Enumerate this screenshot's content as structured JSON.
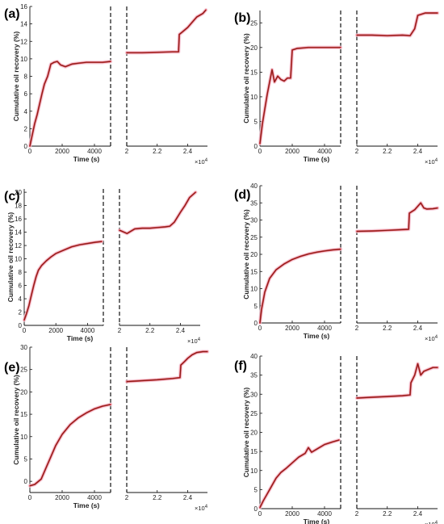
{
  "figure": {
    "xlabel": "Time (s)",
    "ylabel": "Cumulative oil recovery (%)",
    "x_multiplier": "×10^4",
    "line_color": "#8b1a1a",
    "shade_color": "#e03030",
    "halo_color": "#f3c4d4"
  },
  "chart_data": [
    {
      "panel": "(a)",
      "type": "line",
      "ylim": [
        0,
        16
      ],
      "yticks": [
        0,
        2,
        4,
        6,
        8,
        10,
        12,
        14,
        16
      ],
      "left": {
        "xlim": [
          0,
          5000
        ],
        "xticks": [
          0,
          2000,
          4000
        ]
      },
      "right": {
        "xlim": [
          20000,
          25300
        ],
        "xticks": [
          2,
          2.2,
          2.4
        ]
      },
      "series": [
        {
          "segment": "left",
          "x": [
            0,
            150,
            300,
            450,
            600,
            750,
            900,
            1100,
            1300,
            1500,
            1700,
            1900,
            2200,
            2600,
            3000,
            3500,
            4000,
            4500,
            5000
          ],
          "y": [
            0,
            1.3,
            2.6,
            3.6,
            4.8,
            6.0,
            7.1,
            8.0,
            9.4,
            9.6,
            9.7,
            9.3,
            9.1,
            9.4,
            9.5,
            9.6,
            9.6,
            9.6,
            9.7
          ]
        },
        {
          "segment": "right",
          "x": [
            20000,
            21000,
            22000,
            23000,
            23400,
            23450,
            23600,
            24000,
            24300,
            24600,
            25000,
            25200
          ],
          "y": [
            10.7,
            10.7,
            10.75,
            10.8,
            10.8,
            12.8,
            13.0,
            13.6,
            14.2,
            14.8,
            15.2,
            15.6
          ]
        }
      ]
    },
    {
      "panel": "(b)",
      "type": "line",
      "ylim": [
        0,
        27.5
      ],
      "yticks": [
        0,
        5,
        10,
        15,
        20,
        25
      ],
      "left": {
        "xlim": [
          0,
          5000
        ],
        "xticks": [
          0,
          2000,
          4000
        ]
      },
      "right": {
        "xlim": [
          20000,
          25300
        ],
        "xticks": [
          2,
          2.2,
          2.4
        ]
      },
      "series": [
        {
          "segment": "left",
          "x": [
            0,
            150,
            300,
            450,
            600,
            750,
            900,
            1100,
            1300,
            1500,
            1700,
            1900,
            2000,
            2300,
            3000,
            4000,
            5000
          ],
          "y": [
            0.5,
            4.5,
            7.5,
            10.5,
            13.0,
            15.5,
            13.0,
            14.2,
            13.5,
            13.2,
            13.8,
            13.8,
            19.5,
            19.8,
            20.0,
            20.0,
            20.0
          ]
        },
        {
          "segment": "right",
          "x": [
            20000,
            21000,
            22000,
            23000,
            23500,
            23800,
            24000,
            24500,
            25000,
            25300
          ],
          "y": [
            22.5,
            22.5,
            22.4,
            22.5,
            22.4,
            23.8,
            26.5,
            27.0,
            27.0,
            27.0
          ]
        }
      ]
    },
    {
      "panel": "(c)",
      "type": "line",
      "ylim": [
        0,
        20.5
      ],
      "yticks": [
        0,
        2,
        4,
        6,
        8,
        10,
        12,
        14,
        16,
        18,
        20
      ],
      "left": {
        "xlim": [
          0,
          5000
        ],
        "xticks": [
          0,
          2000,
          4000
        ]
      },
      "right": {
        "xlim": [
          20000,
          25300
        ],
        "xticks": [
          2,
          2.2,
          2.4
        ]
      },
      "series": [
        {
          "segment": "left",
          "x": [
            0,
            150,
            300,
            450,
            600,
            750,
            900,
            1100,
            1400,
            1700,
            2000,
            2500,
            3000,
            3500,
            4000,
            4500,
            4900
          ],
          "y": [
            0.8,
            1.8,
            3.0,
            4.5,
            6.0,
            7.3,
            8.3,
            9.0,
            9.7,
            10.3,
            10.8,
            11.3,
            11.8,
            12.1,
            12.3,
            12.5,
            12.6
          ]
        },
        {
          "segment": "right",
          "x": [
            20000,
            20500,
            21000,
            21500,
            22000,
            22500,
            23000,
            23300,
            23600,
            24000,
            24300,
            24600,
            25000
          ],
          "y": [
            14.3,
            13.8,
            14.5,
            14.6,
            14.6,
            14.7,
            14.8,
            14.9,
            15.5,
            17.0,
            18.0,
            19.2,
            20.0
          ]
        }
      ]
    },
    {
      "panel": "(d)",
      "type": "line",
      "ylim": [
        0,
        40
      ],
      "yticks": [
        0,
        5,
        10,
        15,
        20,
        25,
        30,
        35,
        40
      ],
      "left": {
        "xlim": [
          0,
          5000
        ],
        "xticks": [
          0,
          2000,
          4000
        ]
      },
      "right": {
        "xlim": [
          20000,
          25300
        ],
        "xticks": [
          2,
          2.2,
          2.4
        ]
      },
      "series": [
        {
          "segment": "left",
          "x": [
            0,
            100,
            300,
            600,
            1000,
            1500,
            2000,
            2500,
            3000,
            3500,
            4000,
            4500,
            5000
          ],
          "y": [
            0,
            4.0,
            9.0,
            13.0,
            15.5,
            17.2,
            18.5,
            19.4,
            20.1,
            20.6,
            21.0,
            21.3,
            21.5
          ]
        },
        {
          "segment": "right",
          "x": [
            20000,
            21000,
            22000,
            23000,
            23400,
            23450,
            23800,
            24000,
            24200,
            24400,
            24600,
            25000,
            25300
          ],
          "y": [
            26.7,
            26.8,
            27.0,
            27.2,
            27.3,
            32.0,
            33.0,
            34.0,
            35.0,
            33.5,
            33.2,
            33.3,
            33.5
          ]
        }
      ]
    },
    {
      "panel": "(e)",
      "type": "line",
      "ylim": [
        -2.5,
        30
      ],
      "yticks": [
        0,
        5,
        10,
        15,
        20,
        25,
        30
      ],
      "left": {
        "xlim": [
          0,
          5000
        ],
        "xticks": [
          0,
          2000,
          4000
        ]
      },
      "right": {
        "xlim": [
          20000,
          25300
        ],
        "xticks": [
          2,
          2.2,
          2.4
        ]
      },
      "series": [
        {
          "segment": "left",
          "x": [
            0,
            300,
            700,
            1000,
            1300,
            1600,
            2000,
            2500,
            3000,
            3500,
            4000,
            4500,
            5000
          ],
          "y": [
            -1.0,
            -0.7,
            0.5,
            3.0,
            5.5,
            8.0,
            10.5,
            12.7,
            14.2,
            15.3,
            16.2,
            16.8,
            17.2
          ]
        },
        {
          "segment": "right",
          "x": [
            20000,
            21000,
            22000,
            23000,
            23500,
            23550,
            23800,
            24000,
            24300,
            24600,
            25000,
            25300
          ],
          "y": [
            22.3,
            22.5,
            22.7,
            23.0,
            23.2,
            26.0,
            26.8,
            27.5,
            28.3,
            28.8,
            29.0,
            29.0
          ]
        }
      ]
    },
    {
      "panel": "(f)",
      "type": "line",
      "ylim": [
        0,
        40
      ],
      "yticks": [
        0,
        5,
        10,
        15,
        20,
        25,
        30,
        35,
        40
      ],
      "left": {
        "xlim": [
          0,
          5000
        ],
        "xticks": [
          0,
          2000,
          4000
        ]
      },
      "right": {
        "xlim": [
          20000,
          25300
        ],
        "xticks": [
          2,
          2.2,
          2.4
        ]
      },
      "series": [
        {
          "segment": "left",
          "x": [
            0,
            200,
            400,
            600,
            800,
            1000,
            1300,
            1600,
            2000,
            2400,
            2800,
            3000,
            3200,
            3600,
            4000,
            4500,
            4900
          ],
          "y": [
            0.3,
            2.0,
            3.5,
            5.0,
            6.5,
            8.0,
            9.5,
            10.5,
            12.0,
            13.5,
            14.5,
            16.0,
            14.8,
            15.8,
            16.8,
            17.5,
            18.0
          ]
        },
        {
          "segment": "right",
          "x": [
            20000,
            21000,
            22000,
            23000,
            23500,
            23550,
            23800,
            24000,
            24200,
            24400,
            24700,
            25000,
            25300
          ],
          "y": [
            29.0,
            29.2,
            29.4,
            29.6,
            29.8,
            33.0,
            35.0,
            38.0,
            35.0,
            36.0,
            36.5,
            37.0,
            37.0
          ]
        }
      ]
    }
  ]
}
